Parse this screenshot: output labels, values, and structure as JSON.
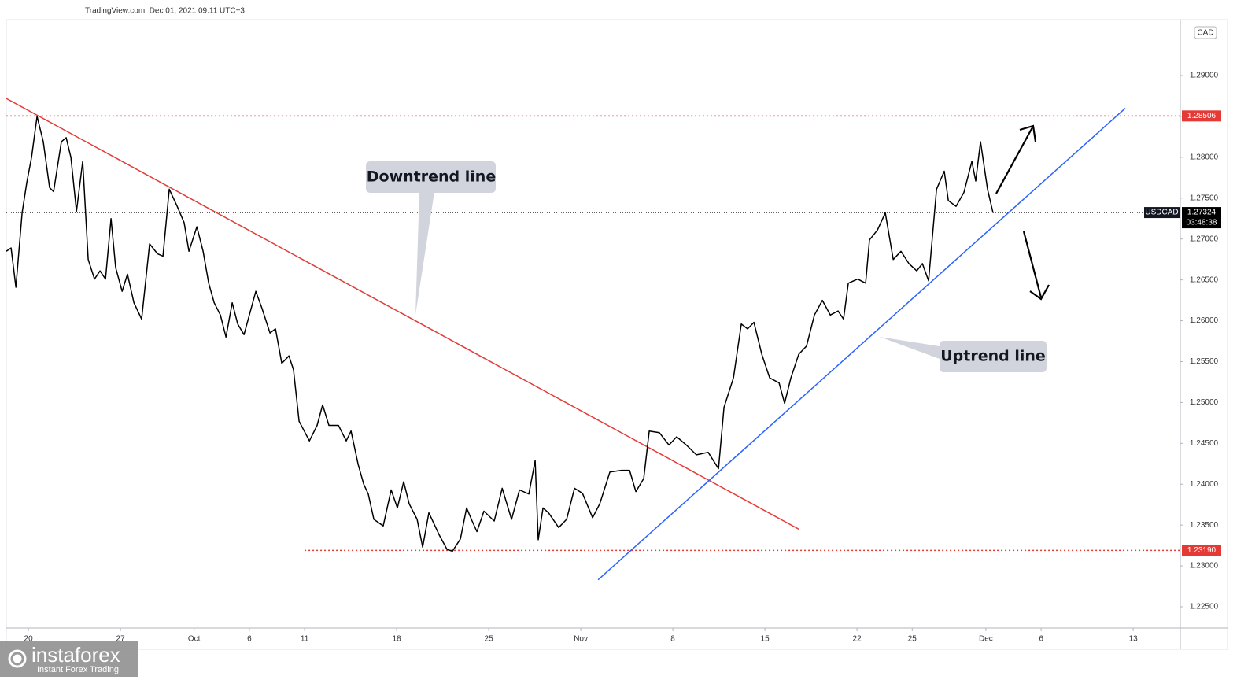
{
  "chart_data": {
    "type": "line",
    "header": "TradingView.com, Dec 01, 2021 09:11 UTC+3",
    "currency": "CAD",
    "x": [
      -1.2,
      -0.94,
      -0.68,
      -0.34,
      -0.09,
      0.17,
      0.47,
      0.81,
      1.15,
      1.37,
      1.79,
      2.05,
      2.31,
      2.61,
      2.95,
      3.25,
      3.59,
      3.89,
      4.19,
      4.49,
      4.74,
      5.09,
      5.38,
      5.73,
      6.15,
      6.58,
      7.01,
      7.31,
      7.65,
      8.08,
      8.46,
      8.72,
      9.15,
      9.49,
      9.79,
      10.09,
      10.43,
      10.73,
      11.07,
      11.37,
      11.71,
      12.35,
      12.69,
      13.12,
      13.42,
      13.76,
      14.15,
      14.4,
      14.7,
      15.26,
      15.68,
      15.98,
      16.32,
      16.84,
      17.26,
      17.52,
      17.91,
      18.21,
      18.46,
      18.76,
      19.27,
      19.7,
      20.04,
      20.38,
      20.68,
      21.11,
      21.41,
      21.75,
      22.31,
      22.74,
      23.03,
      23.46,
      23.8,
      24.1,
      24.36,
      24.74,
      25.3,
      25.73,
      26.24,
      26.67,
      27.18,
      27.52,
      27.69,
      27.95,
      28.25,
      28.8,
      29.23,
      29.66,
      30.09,
      30.64,
      31.03,
      31.58,
      32.22,
      32.65,
      32.99,
      33.42,
      33.72,
      34.27,
      34.79,
      35.21,
      35.73,
      36.28,
      36.92,
      37.48,
      37.78,
      38.29,
      38.72,
      39.06,
      39.4,
      39.83,
      40.26,
      40.77,
      41.07,
      41.41,
      41.84,
      42.26,
      42.69,
      43.12,
      43.55,
      43.97,
      44.27,
      44.53,
      45.04,
      45.47,
      45.68,
      46.11,
      46.54,
      46.97,
      47.39,
      47.82,
      48.25,
      48.55,
      48.89,
      49.32,
      49.74,
      49.96,
      50.38,
      50.81,
      51.24,
      51.45,
      51.71,
      52.09,
      52.39
    ],
    "series": [
      {
        "name": "USDCAD",
        "color": "#000000",
        "values": [
          1.2685,
          1.2689,
          1.2641,
          1.2732,
          1.2769,
          1.28,
          1.285,
          1.2819,
          1.2763,
          1.2758,
          1.2819,
          1.2824,
          1.28,
          1.2734,
          1.2795,
          1.2675,
          1.2651,
          1.2661,
          1.2651,
          1.2725,
          1.2665,
          1.2636,
          1.2657,
          1.2622,
          1.2602,
          1.2694,
          1.2682,
          1.2679,
          1.2761,
          1.274,
          1.272,
          1.2685,
          1.2715,
          1.2685,
          1.2646,
          1.2622,
          1.2607,
          1.258,
          1.2622,
          1.2596,
          1.2583,
          1.2636,
          1.2615,
          1.2585,
          1.259,
          1.2548,
          1.2557,
          1.254,
          1.2477,
          1.2453,
          1.2472,
          1.2497,
          1.2472,
          1.2472,
          1.2453,
          1.2465,
          1.2424,
          1.24,
          1.2388,
          1.2357,
          1.2349,
          1.2393,
          1.2371,
          1.2403,
          1.2376,
          1.2357,
          1.2323,
          1.2365,
          1.2338,
          1.232,
          1.2318,
          1.2333,
          1.2371,
          1.2355,
          1.2342,
          1.2367,
          1.2355,
          1.2395,
          1.2357,
          1.2393,
          1.2388,
          1.2429,
          1.2332,
          1.2371,
          1.2365,
          1.2347,
          1.2357,
          1.2395,
          1.2389,
          1.2359,
          1.2376,
          1.2415,
          1.2417,
          1.2417,
          1.2391,
          1.2407,
          1.2465,
          1.2463,
          1.2448,
          1.2458,
          1.2448,
          1.2436,
          1.2439,
          1.2419,
          1.2494,
          1.253,
          1.2596,
          1.259,
          1.2598,
          1.2559,
          1.253,
          1.2524,
          1.2499,
          1.253,
          1.2559,
          1.2569,
          1.2607,
          1.2625,
          1.2607,
          1.2612,
          1.2602,
          1.2646,
          1.2651,
          1.2646,
          1.2699,
          1.2711,
          1.2732,
          1.2675,
          1.2685,
          1.267,
          1.2661,
          1.267,
          1.2649,
          1.2761,
          1.2783,
          1.2747,
          1.274,
          1.2757,
          1.2795,
          1.2771,
          1.2819,
          1.2761,
          1.2732
        ]
      }
    ],
    "last": {
      "value": 1.27324,
      "countdown": "03:48:38"
    },
    "levels": [
      {
        "value": 1.28506,
        "color": "#e53935"
      },
      {
        "value": 1.2319,
        "label": "1.23190",
        "color": "#e53935",
        "from": 15
      }
    ],
    "trendlines": [
      {
        "label": "Downtrend line",
        "color": "#e53935",
        "x": [
          -1.2,
          41.84
        ],
        "y": [
          1.2872,
          1.2345
        ]
      },
      {
        "label": "Uptrend line",
        "color": "#2962ff",
        "x": [
          30.94,
          59.57
        ],
        "y": [
          1.2283,
          1.286
        ]
      }
    ],
    "xlim": [
      -1.2,
      62.56
    ],
    "ylim": [
      1.2224,
      1.29684
    ],
    "xticks": [
      {
        "value": 0,
        "label": "20"
      },
      {
        "value": 5,
        "label": "27"
      },
      {
        "value": 9,
        "label": "Oct"
      },
      {
        "value": 12,
        "label": "6"
      },
      {
        "value": 15,
        "label": "11"
      },
      {
        "value": 20,
        "label": "18"
      },
      {
        "value": 25,
        "label": "25"
      },
      {
        "value": 30,
        "label": "Nov"
      },
      {
        "value": 35,
        "label": "8"
      },
      {
        "value": 40,
        "label": "15"
      },
      {
        "value": 45,
        "label": "22"
      },
      {
        "value": 48,
        "label": "25"
      },
      {
        "value": 52,
        "label": "Dec"
      },
      {
        "value": 55,
        "label": "6"
      },
      {
        "value": 60,
        "label": "13"
      }
    ],
    "yticks": [
      {
        "value": 1.225,
        "label": "1.22500"
      },
      {
        "value": 1.23,
        "label": "1.23000"
      },
      {
        "value": 1.235,
        "label": "1.23500"
      },
      {
        "value": 1.24,
        "label": "1.24000"
      },
      {
        "value": 1.245,
        "label": "1.24500"
      },
      {
        "value": 1.25,
        "label": "1.25000"
      },
      {
        "value": 1.255,
        "label": "1.25500"
      },
      {
        "value": 1.26,
        "label": "1.26000"
      },
      {
        "value": 1.265,
        "label": "1.26500"
      },
      {
        "value": 1.27,
        "label": "1.27000"
      },
      {
        "value": 1.275,
        "label": "1.27500"
      },
      {
        "value": 1.28,
        "label": "1.28000"
      },
      {
        "value": 1.285,
        "label": "1.28500"
      },
      {
        "value": 1.29,
        "label": "1.29000"
      }
    ],
    "grid": false,
    "watermark": {
      "brand": "instaforex",
      "tagline": "Instant Forex Trading"
    }
  }
}
